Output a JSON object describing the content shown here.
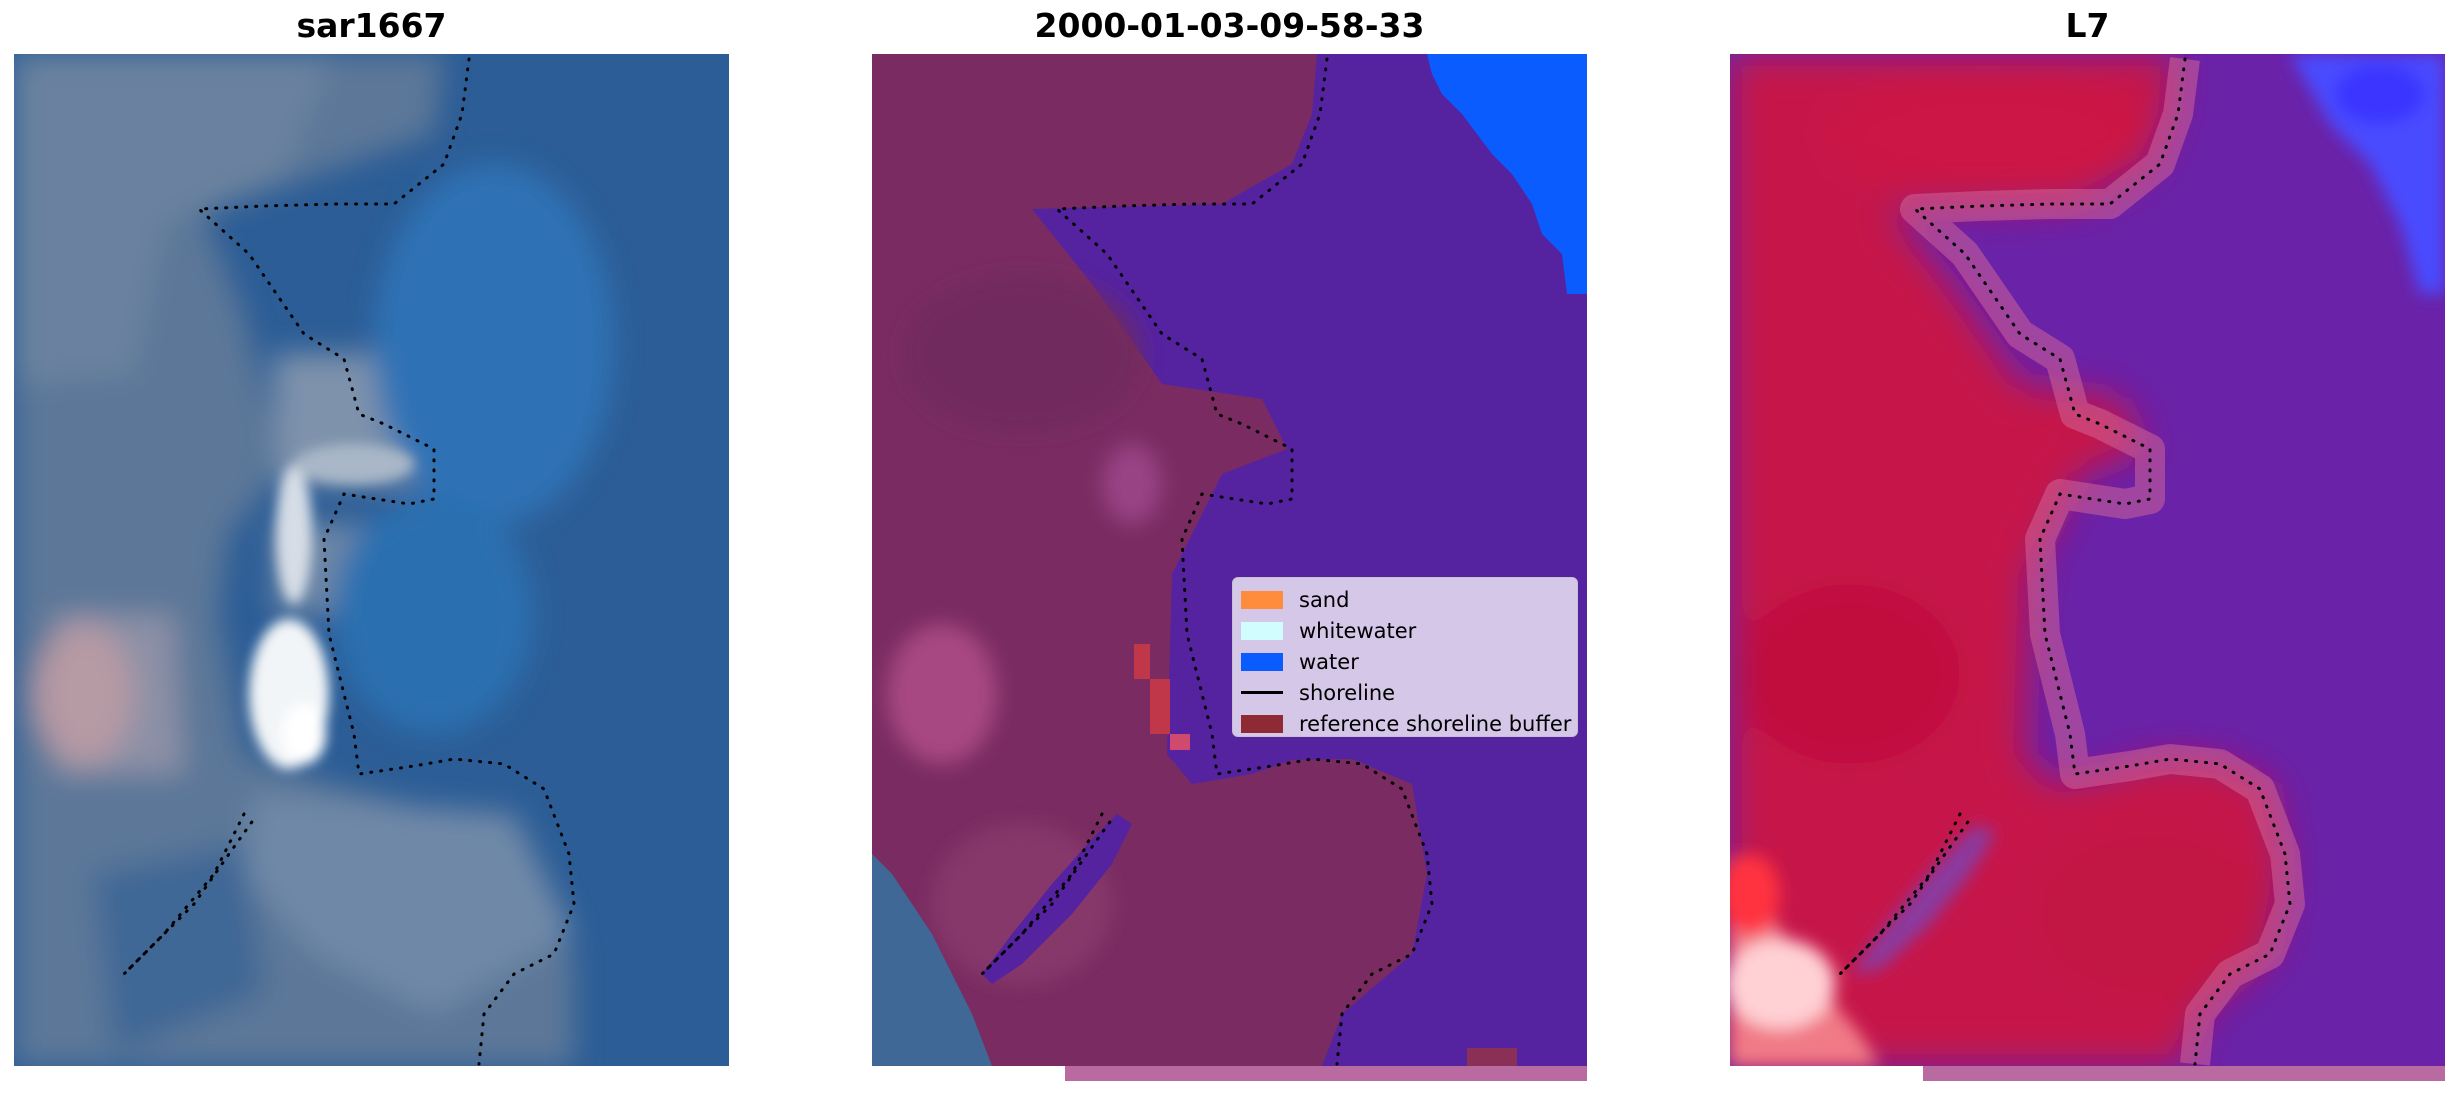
{
  "panels": [
    {
      "title": "sar1667"
    },
    {
      "title": "2000-01-03-09-58-33"
    },
    {
      "title": "L7"
    }
  ],
  "legend": {
    "items": [
      {
        "label": "sand",
        "color": "#ff8b3d",
        "kind": "patch"
      },
      {
        "label": "whitewater",
        "color": "#d2fdff",
        "kind": "patch"
      },
      {
        "label": "water",
        "color": "#0a5cff",
        "kind": "patch"
      },
      {
        "label": "shoreline",
        "color": "#000000",
        "kind": "line"
      },
      {
        "label": "reference shoreline buffer",
        "color": "#8f2a35",
        "kind": "patch"
      }
    ]
  },
  "colors": {
    "sar_water": "#2a5f9a",
    "sar_land": "#5a7596",
    "classified_sand_overlay": "#7a2c62",
    "classified_water_overlay": "#5523a0",
    "classified_open_water": "#0a5cff",
    "l7_land": "#c6174a",
    "l7_water": "#6a22a8",
    "l7_bright_water": "#4a4cff"
  }
}
